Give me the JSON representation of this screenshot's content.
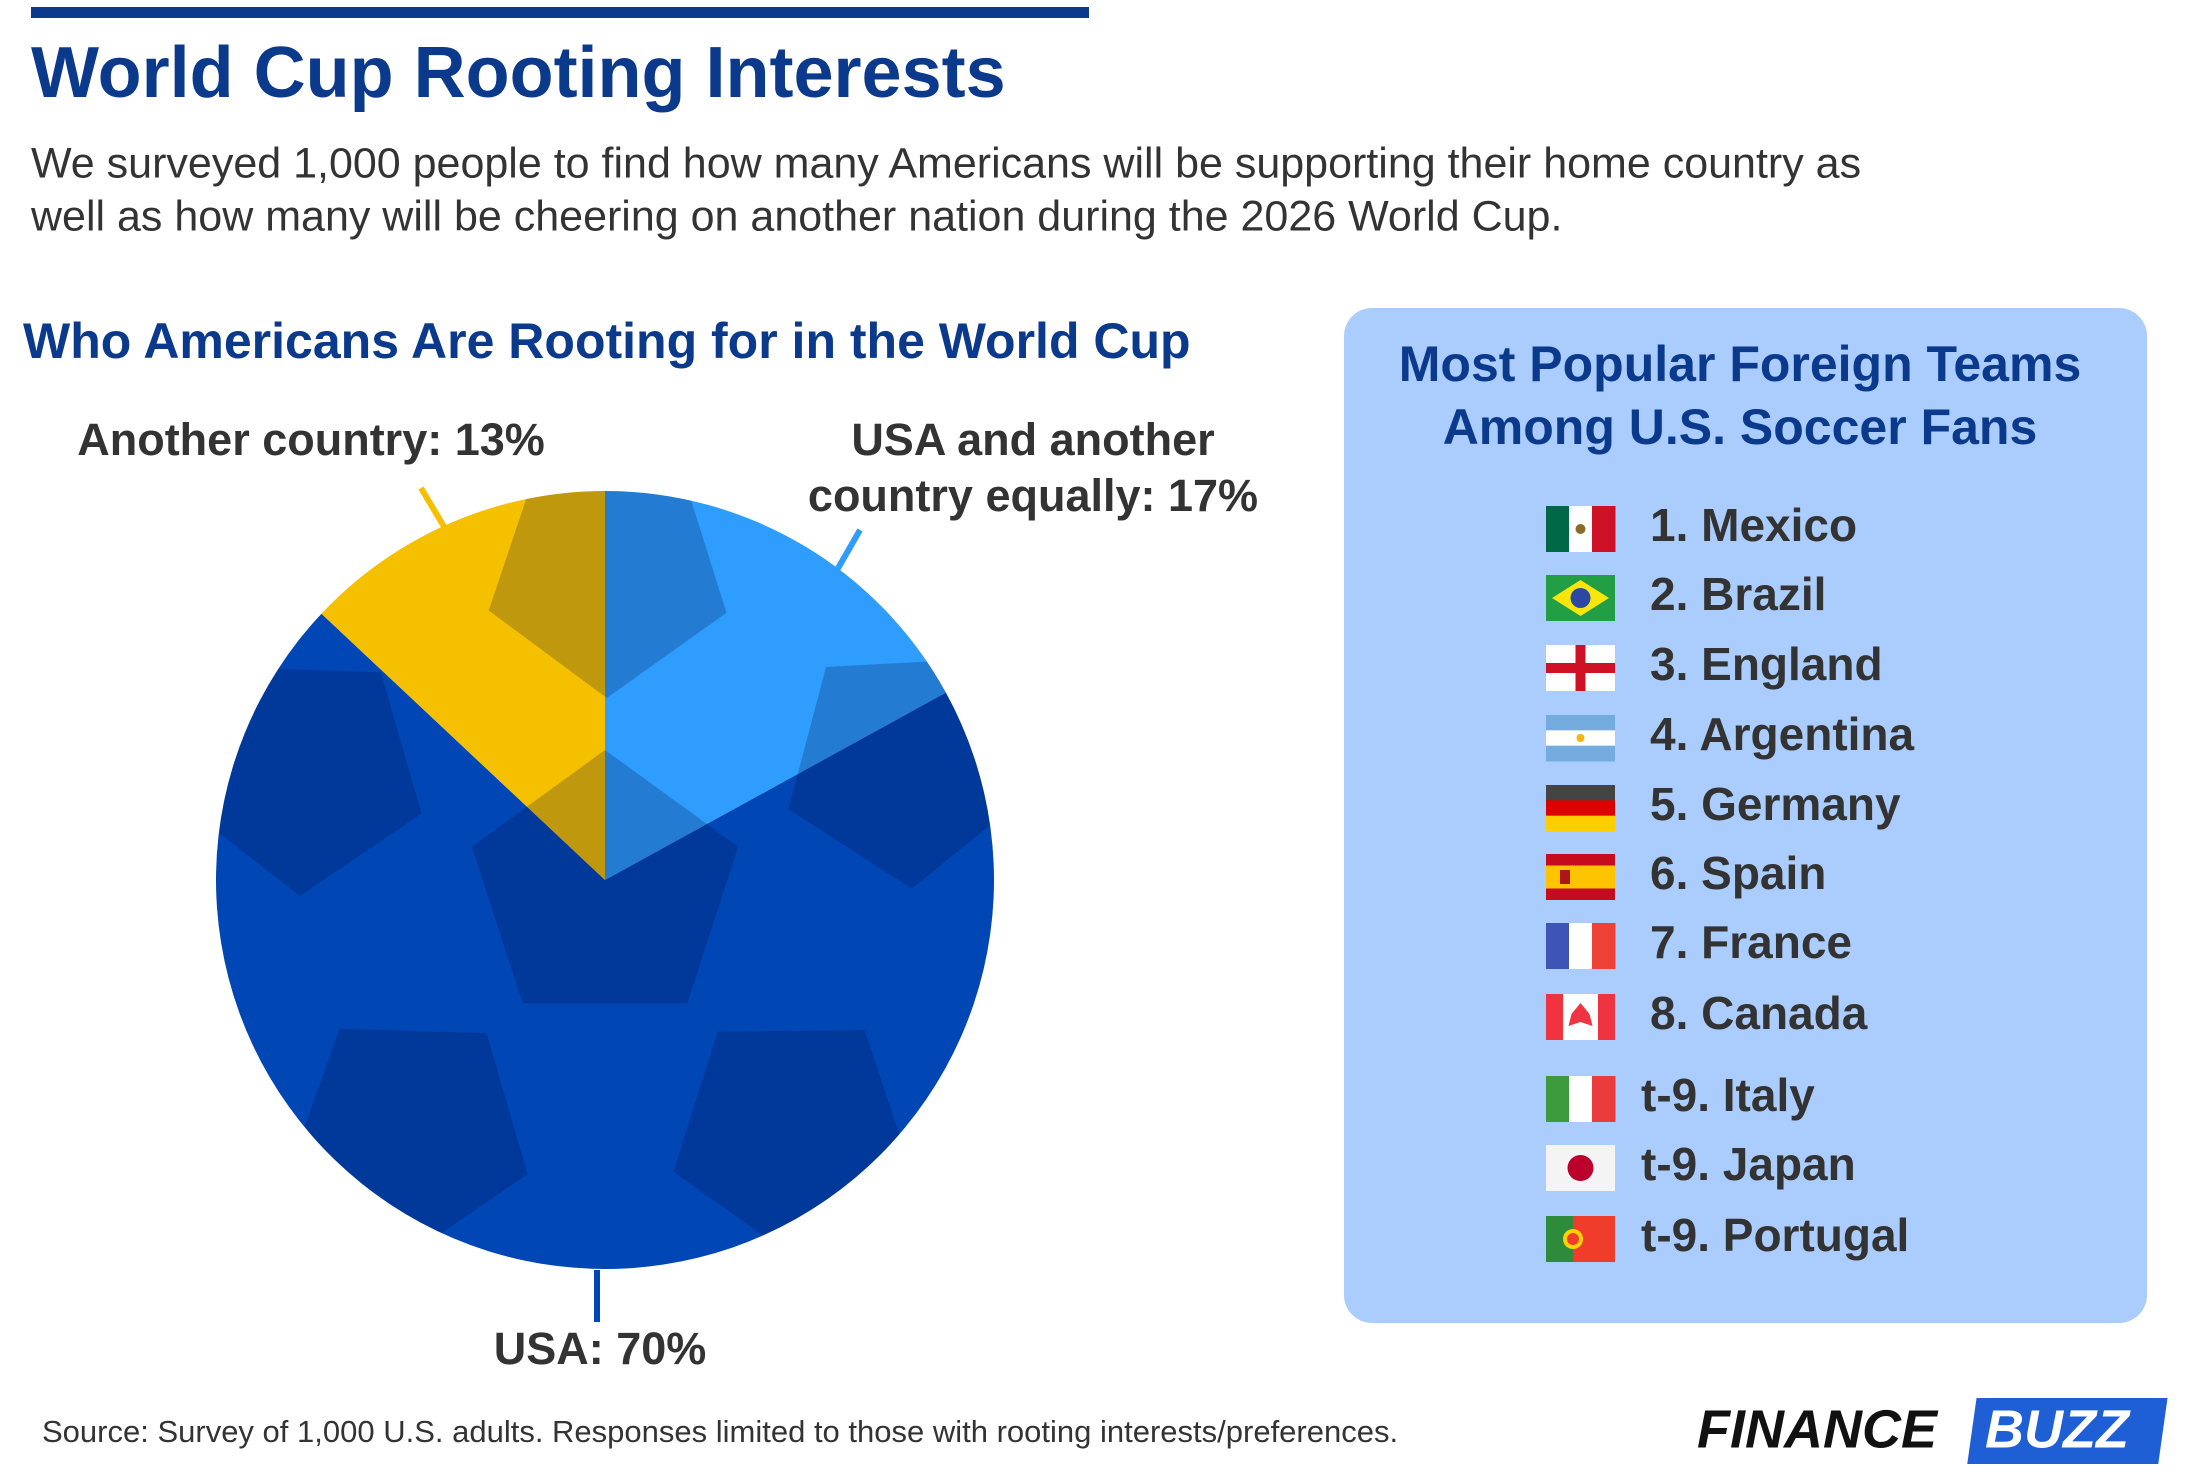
{
  "header": {
    "title": "World Cup Rooting Interests",
    "subtitle": [
      "We surveyed 1,000 people to find how many Americans will be supporting their home country as",
      "well as how many will be cheering on another nation during the 2026 World Cup."
    ]
  },
  "chart_data": {
    "type": "pie",
    "title": "Who Americans Are Rooting for in the World Cup",
    "values": [
      17,
      70,
      13
    ],
    "value_labels": [
      "USA and another country equally: 17%",
      "USA: 70%",
      "Another country: 13%"
    ],
    "colors": [
      "#2e9dfd",
      "#0047b5",
      "#f5c000"
    ]
  },
  "ranking": {
    "title": [
      "Most Popular Foreign Teams",
      "Among U.S. Soccer Fans"
    ],
    "items": [
      "1. Mexico",
      "2. Brazil",
      "3. England",
      "4. Argentina",
      "5. Germany",
      "6. Spain",
      "7. France",
      "8. Canada",
      "t-9. Italy",
      "t-9. Japan",
      "t-9. Portugal"
    ]
  },
  "footer": {
    "source": "Source: Survey of 1,000 U.S. adults. Responses limited to those with rooting interests/preferences.",
    "logo": [
      "FINANCE",
      "BUZZ"
    ]
  }
}
